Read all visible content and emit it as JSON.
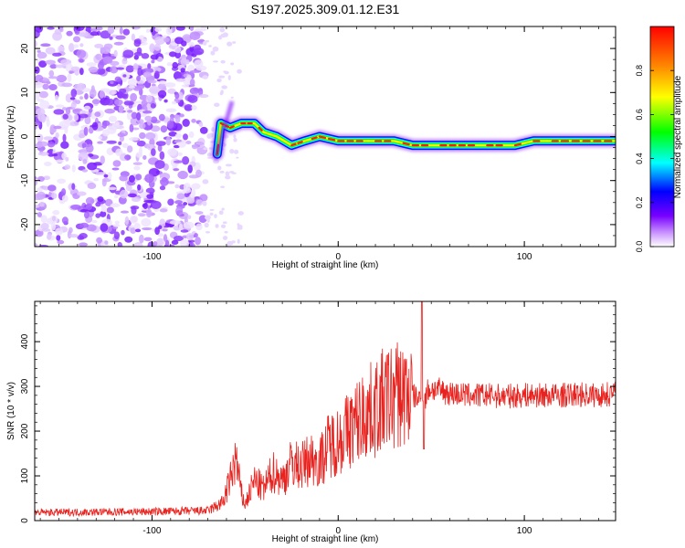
{
  "title": "S197.2025.309.01.12.E31",
  "chart_data": [
    {
      "type": "heatmap",
      "title": "S197.2025.309.01.12.E31",
      "xlabel": "Height of straight line (km)",
      "ylabel": "Frequency (Hz)",
      "xlim": [
        -163,
        149
      ],
      "ylim": [
        -25,
        25
      ],
      "xticks": [
        -100,
        0,
        100
      ],
      "yticks": [
        20,
        10,
        0,
        -10,
        -20
      ],
      "colorbar": {
        "label": "Normalized spectral amplitude",
        "range": [
          0,
          1
        ],
        "ticks": [
          0.0,
          0.2,
          0.4,
          0.6,
          0.8
        ],
        "colors": [
          "#ffffff",
          "#cc99ff",
          "#7700ff",
          "#0000ff",
          "#00ffff",
          "#00ff00",
          "#ffff00",
          "#ff8800",
          "#ff0000"
        ]
      },
      "noise_region_x": [
        -163,
        -72
      ],
      "ridge": [
        {
          "x": -65,
          "y": -4
        },
        {
          "x": -63,
          "y": 3
        },
        {
          "x": -58,
          "y": 2
        },
        {
          "x": -52,
          "y": 3
        },
        {
          "x": -45,
          "y": 3
        },
        {
          "x": -40,
          "y": 1
        },
        {
          "x": -33,
          "y": 0
        },
        {
          "x": -25,
          "y": -2
        },
        {
          "x": -18,
          "y": -1
        },
        {
          "x": -10,
          "y": 0
        },
        {
          "x": 0,
          "y": -1
        },
        {
          "x": 10,
          "y": -1
        },
        {
          "x": 20,
          "y": -1
        },
        {
          "x": 30,
          "y": -1
        },
        {
          "x": 40,
          "y": -2
        },
        {
          "x": 60,
          "y": -2
        },
        {
          "x": 80,
          "y": -2
        },
        {
          "x": 95,
          "y": -2
        },
        {
          "x": 105,
          "y": -1
        },
        {
          "x": 120,
          "y": -1
        },
        {
          "x": 149,
          "y": -1
        }
      ]
    },
    {
      "type": "line",
      "xlabel": "Height of straight line (km)",
      "ylabel": "SNR (10 * v/v)",
      "xlim": [
        -163,
        149
      ],
      "ylim": [
        0,
        490
      ],
      "xticks": [
        -100,
        0,
        100
      ],
      "yticks": [
        0,
        100,
        200,
        300,
        400
      ],
      "series": [
        {
          "name": "SNR",
          "color": "#e8221e",
          "envelope_x": [
            -163,
            -100,
            -70,
            -62,
            -58,
            -55,
            -52,
            -50,
            -45,
            -40,
            -35,
            -30,
            -25,
            -20,
            -15,
            -10,
            -5,
            0,
            5,
            10,
            15,
            20,
            25,
            30,
            35,
            40,
            44,
            46,
            48,
            50,
            55,
            60,
            70,
            80,
            90,
            100,
            110,
            120,
            130,
            140,
            149
          ],
          "envelope_y": [
            18,
            20,
            22,
            40,
            90,
            140,
            60,
            35,
            90,
            70,
            110,
            90,
            130,
            120,
            140,
            130,
            170,
            180,
            200,
            220,
            240,
            250,
            270,
            280,
            285,
            280,
            270,
            260,
            290,
            295,
            290,
            285,
            280,
            280,
            278,
            280,
            280,
            280,
            282,
            280,
            285
          ],
          "spikes": [
            {
              "x": 45,
              "y": 490
            },
            {
              "x": 46,
              "y": 160
            }
          ]
        }
      ]
    }
  ]
}
